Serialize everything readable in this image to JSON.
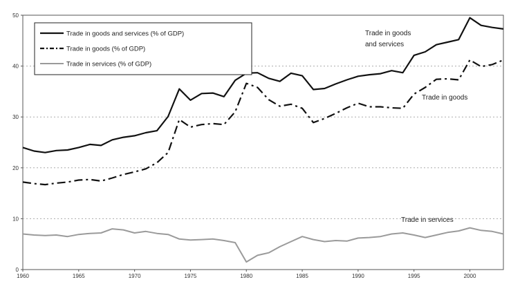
{
  "chart_data": {
    "type": "line",
    "title": "",
    "xlabel": "",
    "ylabel": "",
    "xlim": [
      1960,
      2003
    ],
    "ylim": [
      0,
      50
    ],
    "grid": true,
    "legend_position": "top-left",
    "x_ticks": [
      "1960",
      "1965",
      "1970",
      "1975",
      "1980",
      "1985",
      "1990",
      "1995",
      "2000"
    ],
    "y_ticks": [
      "0",
      "10",
      "20",
      "30",
      "40",
      "50"
    ],
    "x": [
      1960,
      1961,
      1962,
      1963,
      1964,
      1965,
      1966,
      1967,
      1968,
      1969,
      1970,
      1971,
      1972,
      1973,
      1974,
      1975,
      1976,
      1977,
      1978,
      1979,
      1980,
      1981,
      1982,
      1983,
      1984,
      1985,
      1986,
      1987,
      1988,
      1989,
      1990,
      1991,
      1992,
      1993,
      1994,
      1995,
      1996,
      1997,
      1998,
      1999,
      2000,
      2001,
      2002,
      2003
    ],
    "series": [
      {
        "name": "Trade in goods and services (% of GDP)",
        "style": "solid",
        "color": "#111111",
        "values": [
          24.0,
          23.3,
          23.0,
          23.4,
          23.5,
          24.0,
          24.6,
          24.4,
          25.5,
          26.0,
          26.3,
          26.9,
          27.3,
          30.1,
          35.5,
          33.3,
          34.6,
          34.7,
          34.0,
          37.2,
          38.6,
          38.7,
          37.6,
          37.0,
          38.6,
          38.1,
          35.4,
          35.6,
          36.5,
          37.3,
          38.0,
          38.3,
          38.5,
          39.1,
          38.7,
          42.1,
          42.8,
          44.2,
          44.7,
          45.2,
          49.5,
          48.0,
          47.6,
          47.3
        ]
      },
      {
        "name": "Trade in goods (% of GDP)",
        "style": "dash-dot",
        "color": "#111111",
        "values": [
          17.2,
          16.9,
          16.7,
          17.0,
          17.2,
          17.6,
          17.7,
          17.4,
          18.0,
          18.7,
          19.2,
          19.8,
          21.0,
          23.0,
          29.5,
          28.0,
          28.5,
          28.7,
          28.5,
          31.0,
          36.6,
          35.8,
          33.4,
          32.1,
          32.5,
          31.7,
          28.9,
          29.7,
          30.7,
          31.8,
          32.7,
          32.0,
          32.0,
          31.8,
          31.7,
          34.5,
          35.8,
          37.4,
          37.5,
          37.3,
          41.2,
          39.9,
          40.3,
          41.2
        ]
      },
      {
        "name": "Trade in services (% of GDP)",
        "style": "solid-light",
        "color": "#9a9a9a",
        "values": [
          7.0,
          6.8,
          6.7,
          6.8,
          6.5,
          6.9,
          7.1,
          7.2,
          8.0,
          7.8,
          7.2,
          7.5,
          7.1,
          6.9,
          6.0,
          5.8,
          5.9,
          6.0,
          5.7,
          5.3,
          1.5,
          2.8,
          3.3,
          4.5,
          5.5,
          6.5,
          5.9,
          5.5,
          5.7,
          5.6,
          6.2,
          6.3,
          6.5,
          7.0,
          7.2,
          6.8,
          6.3,
          6.8,
          7.3,
          7.6,
          8.2,
          7.7,
          7.5,
          7.0
        ]
      }
    ],
    "annotations": [
      {
        "text": "Trade in goods",
        "text2": "and services"
      },
      {
        "text": "Trade in goods"
      },
      {
        "text": "Trade in services"
      }
    ]
  }
}
